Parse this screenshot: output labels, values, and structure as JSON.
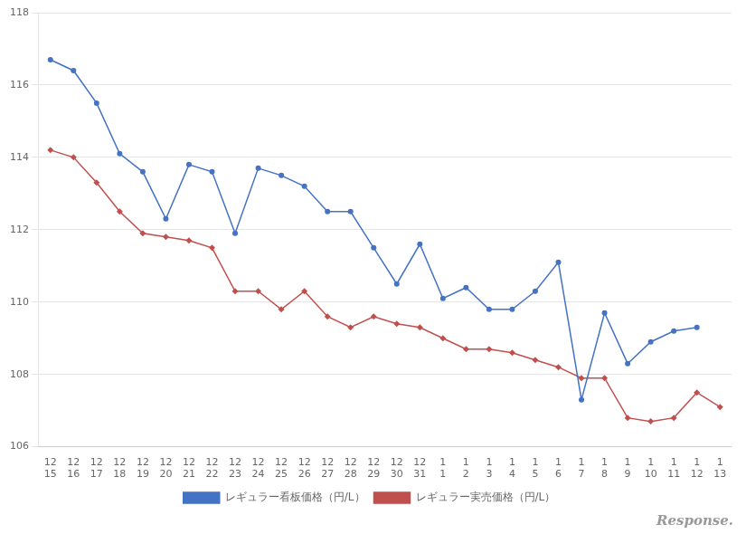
{
  "chart_data": {
    "type": "line",
    "categories": [
      "12\n15",
      "12\n16",
      "12\n17",
      "12\n18",
      "12\n19",
      "12\n20",
      "12\n21",
      "12\n22",
      "12\n23",
      "12\n24",
      "12\n25",
      "12\n26",
      "12\n27",
      "12\n28",
      "12\n29",
      "12\n30",
      "12\n31",
      "1\n1",
      "1\n2",
      "1\n3",
      "1\n4",
      "1\n5",
      "1\n6",
      "1\n7",
      "1\n8",
      "1\n9",
      "1\n10",
      "1\n11",
      "1\n12",
      "1\n13"
    ],
    "series": [
      {
        "name": "レギュラー看板価格（円/L）",
        "color": "#4472C4",
        "marker": "circle",
        "values": [
          116.7,
          116.4,
          115.5,
          114.1,
          113.6,
          112.3,
          113.8,
          113.6,
          111.9,
          113.7,
          113.5,
          113.2,
          112.5,
          112.5,
          111.5,
          110.5,
          111.6,
          110.1,
          110.4,
          109.8,
          109.8,
          110.3,
          111.1,
          107.3,
          109.7,
          108.3,
          108.9,
          109.2,
          109.3,
          null
        ]
      },
      {
        "name": "レギュラー実売価格（円/L）",
        "color": "#C0504D",
        "marker": "diamond",
        "values": [
          114.2,
          114.0,
          113.3,
          112.5,
          111.9,
          111.8,
          111.7,
          111.5,
          110.3,
          110.3,
          109.8,
          110.3,
          109.6,
          109.3,
          109.6,
          109.4,
          109.3,
          109.0,
          108.7,
          108.7,
          108.6,
          108.4,
          108.2,
          107.9,
          107.9,
          106.8,
          106.7,
          106.8,
          107.5,
          107.1
        ]
      }
    ],
    "ylim": [
      106,
      118
    ],
    "yticks": [
      106,
      108,
      110,
      112,
      114,
      116,
      118
    ],
    "grid": "y",
    "legend": "bottom",
    "annotations": [
      "Response."
    ]
  }
}
